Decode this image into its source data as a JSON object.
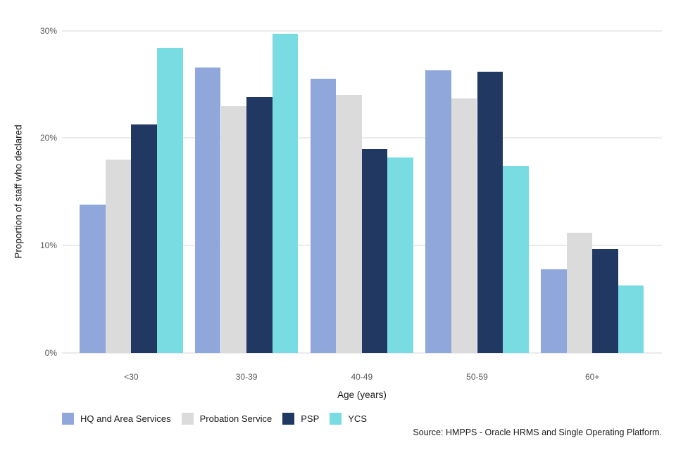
{
  "chart_data": {
    "type": "bar",
    "title": "",
    "categories": [
      "<30",
      "30-39",
      "40-49",
      "50-59",
      "60+"
    ],
    "series": [
      {
        "name": "HQ and Area Services",
        "color": "#90A7DB",
        "values": [
          13.8,
          26.6,
          25.5,
          26.3,
          7.8
        ]
      },
      {
        "name": "Probation Service",
        "color": "#DBDBDB",
        "values": [
          18.0,
          23.0,
          24.0,
          23.7,
          11.2
        ]
      },
      {
        "name": "PSP",
        "color": "#213863",
        "values": [
          21.3,
          23.8,
          19.0,
          26.2,
          9.7
        ]
      },
      {
        "name": "YCS",
        "color": "#78DCE2",
        "values": [
          28.4,
          29.7,
          18.2,
          17.4,
          6.3
        ]
      }
    ],
    "xlabel": "Age (years)",
    "ylabel": "Proportion of staff who declared",
    "ylim": [
      0,
      30
    ],
    "yticks": [
      0,
      10,
      20,
      30
    ],
    "ytick_labels": [
      "0%",
      "10%",
      "20%",
      "30%"
    ],
    "grid": "horizontal",
    "legend_position": "bottom-left",
    "gridline_color": "#ebebeb"
  },
  "footer": {
    "source": "Source: HMPPS - Oracle HRMS and Single Operating Platform."
  }
}
